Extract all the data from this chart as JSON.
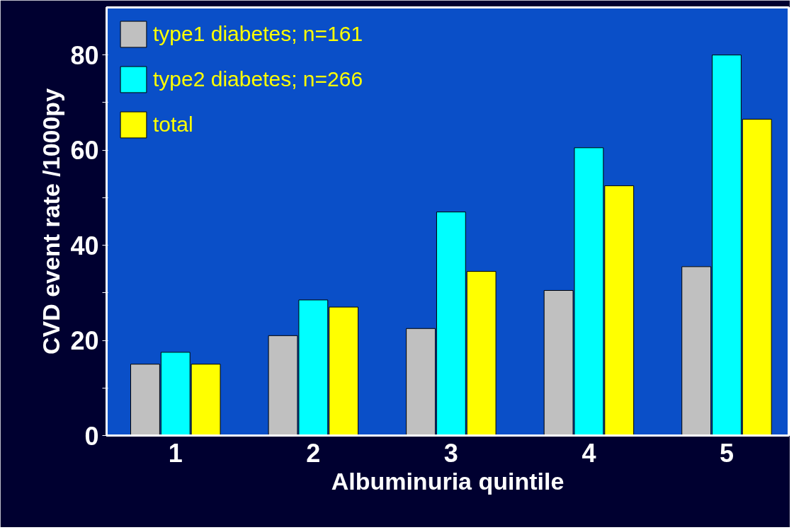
{
  "chart_data": {
    "type": "bar",
    "xlabel": "Albuminuria quintile",
    "ylabel": "CVD event rate /1000py",
    "categories": [
      "1",
      "2",
      "3",
      "4",
      "5"
    ],
    "series": [
      {
        "name": "type1 diabetes; n=161",
        "color": "#c0c0c0",
        "values": [
          15,
          21,
          22.5,
          30.5,
          35.5
        ]
      },
      {
        "name": "type2 diabetes; n=266",
        "color": "#00ffff",
        "values": [
          17.5,
          28.5,
          47,
          60.5,
          80
        ]
      },
      {
        "name": "total",
        "color": "#ffff00",
        "values": [
          15,
          27,
          34.5,
          52.5,
          66.5
        ]
      }
    ],
    "ylim": [
      0,
      90
    ],
    "yticks": [
      0,
      {
        "value": 10,
        "label": null
      },
      20,
      {
        "value": 30,
        "label": null
      },
      40,
      {
        "value": 50,
        "label": null
      },
      60,
      {
        "value": 70,
        "label": null
      },
      80
    ],
    "grid": false,
    "legend": "top left"
  }
}
